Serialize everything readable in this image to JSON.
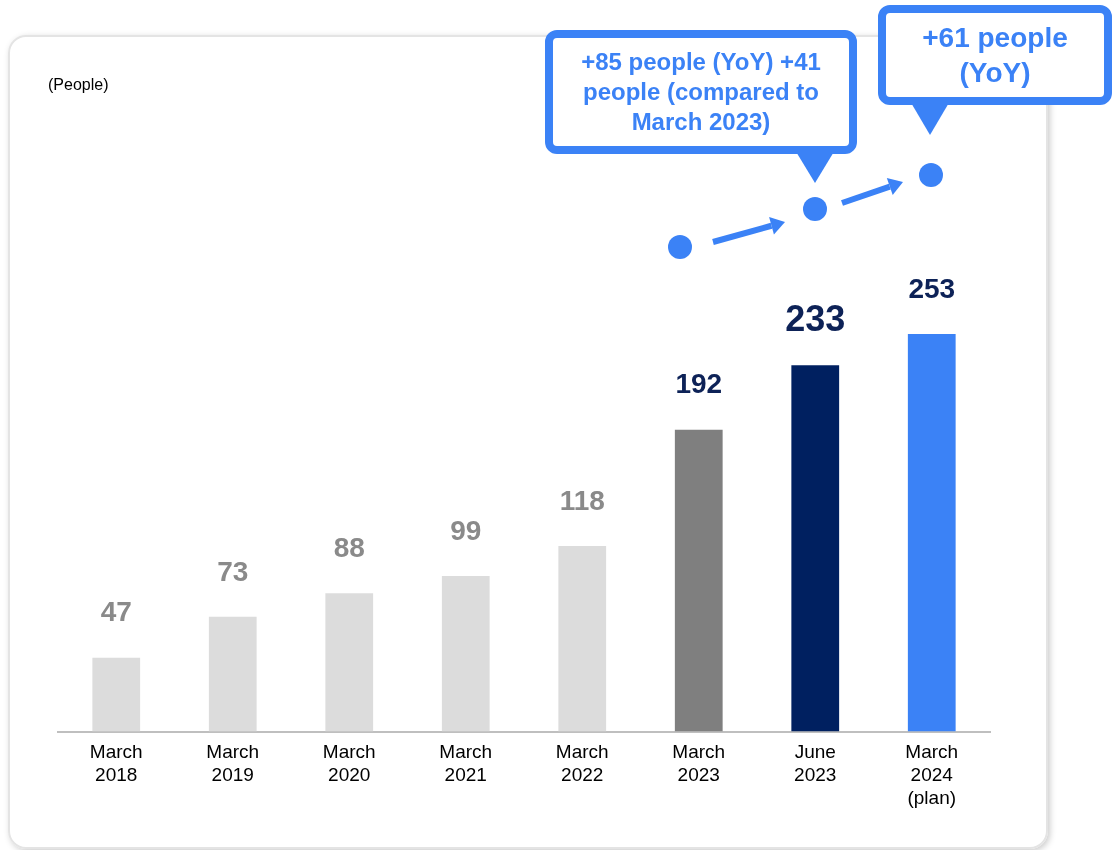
{
  "chart_data": {
    "type": "bar",
    "categories": [
      "March 2018",
      "March 2019",
      "March 2020",
      "March 2021",
      "March 2022",
      "March 2023",
      "June 2023",
      "March 2024 (plan)"
    ],
    "values": [
      47,
      73,
      88,
      99,
      118,
      192,
      233,
      253
    ],
    "colors": [
      "#dcdcdc",
      "#dcdcdc",
      "#dcdcdc",
      "#dcdcdc",
      "#dcdcdc",
      "#7f7f7f",
      "#002060",
      "#3b82f6"
    ],
    "data_labels": true,
    "grid": false,
    "legend": false,
    "annotations": [
      "(People)",
      "+85 people (YoY) +41 people (compared to March 2023)",
      "+61 people (YoY)"
    ]
  }
}
